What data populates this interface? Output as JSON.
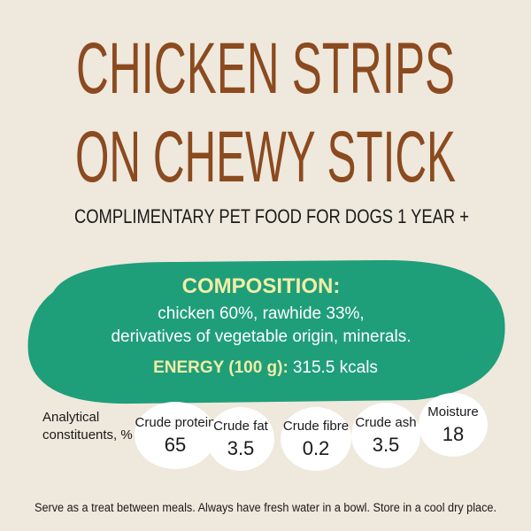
{
  "title": {
    "lines": [
      "CHICKEN STRIPS",
      "ON CHEWY STICK"
    ]
  },
  "subtitle": "COMPLIMENTARY PET FOOD FOR DOGS 1 YEAR +",
  "composition": {
    "heading": "COMPOSITION:",
    "lines": [
      "chicken 60%, rawhide 33%,",
      "derivatives of vegetable origin, minerals."
    ],
    "energy_label": "ENERGY (100 g):",
    "energy_value": "315.5 kcals"
  },
  "analytical": {
    "label_lines": [
      "Analytical",
      "constituents, %"
    ],
    "items": [
      {
        "name": "Crude protein",
        "value": 65
      },
      {
        "name": "Crude fat",
        "value": 3.5
      },
      {
        "name": "Crude fibre",
        "value": 0.2
      },
      {
        "name": "Crude ash",
        "value": 3.5
      },
      {
        "name": "Moisture",
        "value": 18
      }
    ]
  },
  "footer": "Serve as a treat between meals. Always have fresh water in a bowl. Store in a cool dry place."
}
